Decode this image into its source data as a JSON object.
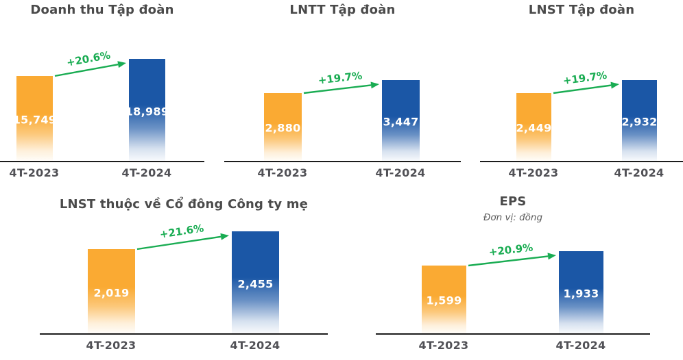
{
  "colors": {
    "bar_2023": "#FAAA33",
    "bar_2024": "#1B57A6",
    "growth_green": "#19AC52",
    "title_text": "#4A4A4A",
    "axis_label_text": "#515156",
    "baseline": "#1C1C1C"
  },
  "chart_data": [
    {
      "type": "bar",
      "title": "Doanh thu Tập đoàn",
      "categories": [
        "4T-2023",
        "4T-2024"
      ],
      "values": [
        15749,
        18989
      ],
      "value_labels": [
        "15,749",
        "18,989"
      ],
      "growth_label": "+20.6%",
      "growth_pct": 20.6,
      "legend": "none",
      "grid": "off"
    },
    {
      "type": "bar",
      "title": "LNTT Tập đoàn",
      "categories": [
        "4T-2023",
        "4T-2024"
      ],
      "values": [
        2880,
        3447
      ],
      "value_labels": [
        "2,880",
        "3,447"
      ],
      "growth_label": "+19.7%",
      "growth_pct": 19.7,
      "legend": "none",
      "grid": "off"
    },
    {
      "type": "bar",
      "title": "LNST Tập đoàn",
      "categories": [
        "4T-2023",
        "4T-2024"
      ],
      "values": [
        2449,
        2932
      ],
      "value_labels": [
        "2,449",
        "2,932"
      ],
      "growth_label": "+19.7%",
      "growth_pct": 19.7,
      "legend": "none",
      "grid": "off"
    },
    {
      "type": "bar",
      "title": "LNST thuộc về Cổ đông Công ty mẹ",
      "categories": [
        "4T-2023",
        "4T-2024"
      ],
      "values": [
        2019,
        2455
      ],
      "value_labels": [
        "2,019",
        "2,455"
      ],
      "growth_label": "+21.6%",
      "growth_pct": 21.6,
      "legend": "none",
      "grid": "off"
    },
    {
      "type": "bar",
      "title": "EPS",
      "subtitle": "Đơn vị: đồng",
      "categories": [
        "4T-2023",
        "4T-2024"
      ],
      "values": [
        1599,
        1933
      ],
      "value_labels": [
        "1,599",
        "1,933"
      ],
      "growth_label": "+20.9%",
      "growth_pct": 20.9,
      "legend": "none",
      "grid": "off"
    }
  ]
}
